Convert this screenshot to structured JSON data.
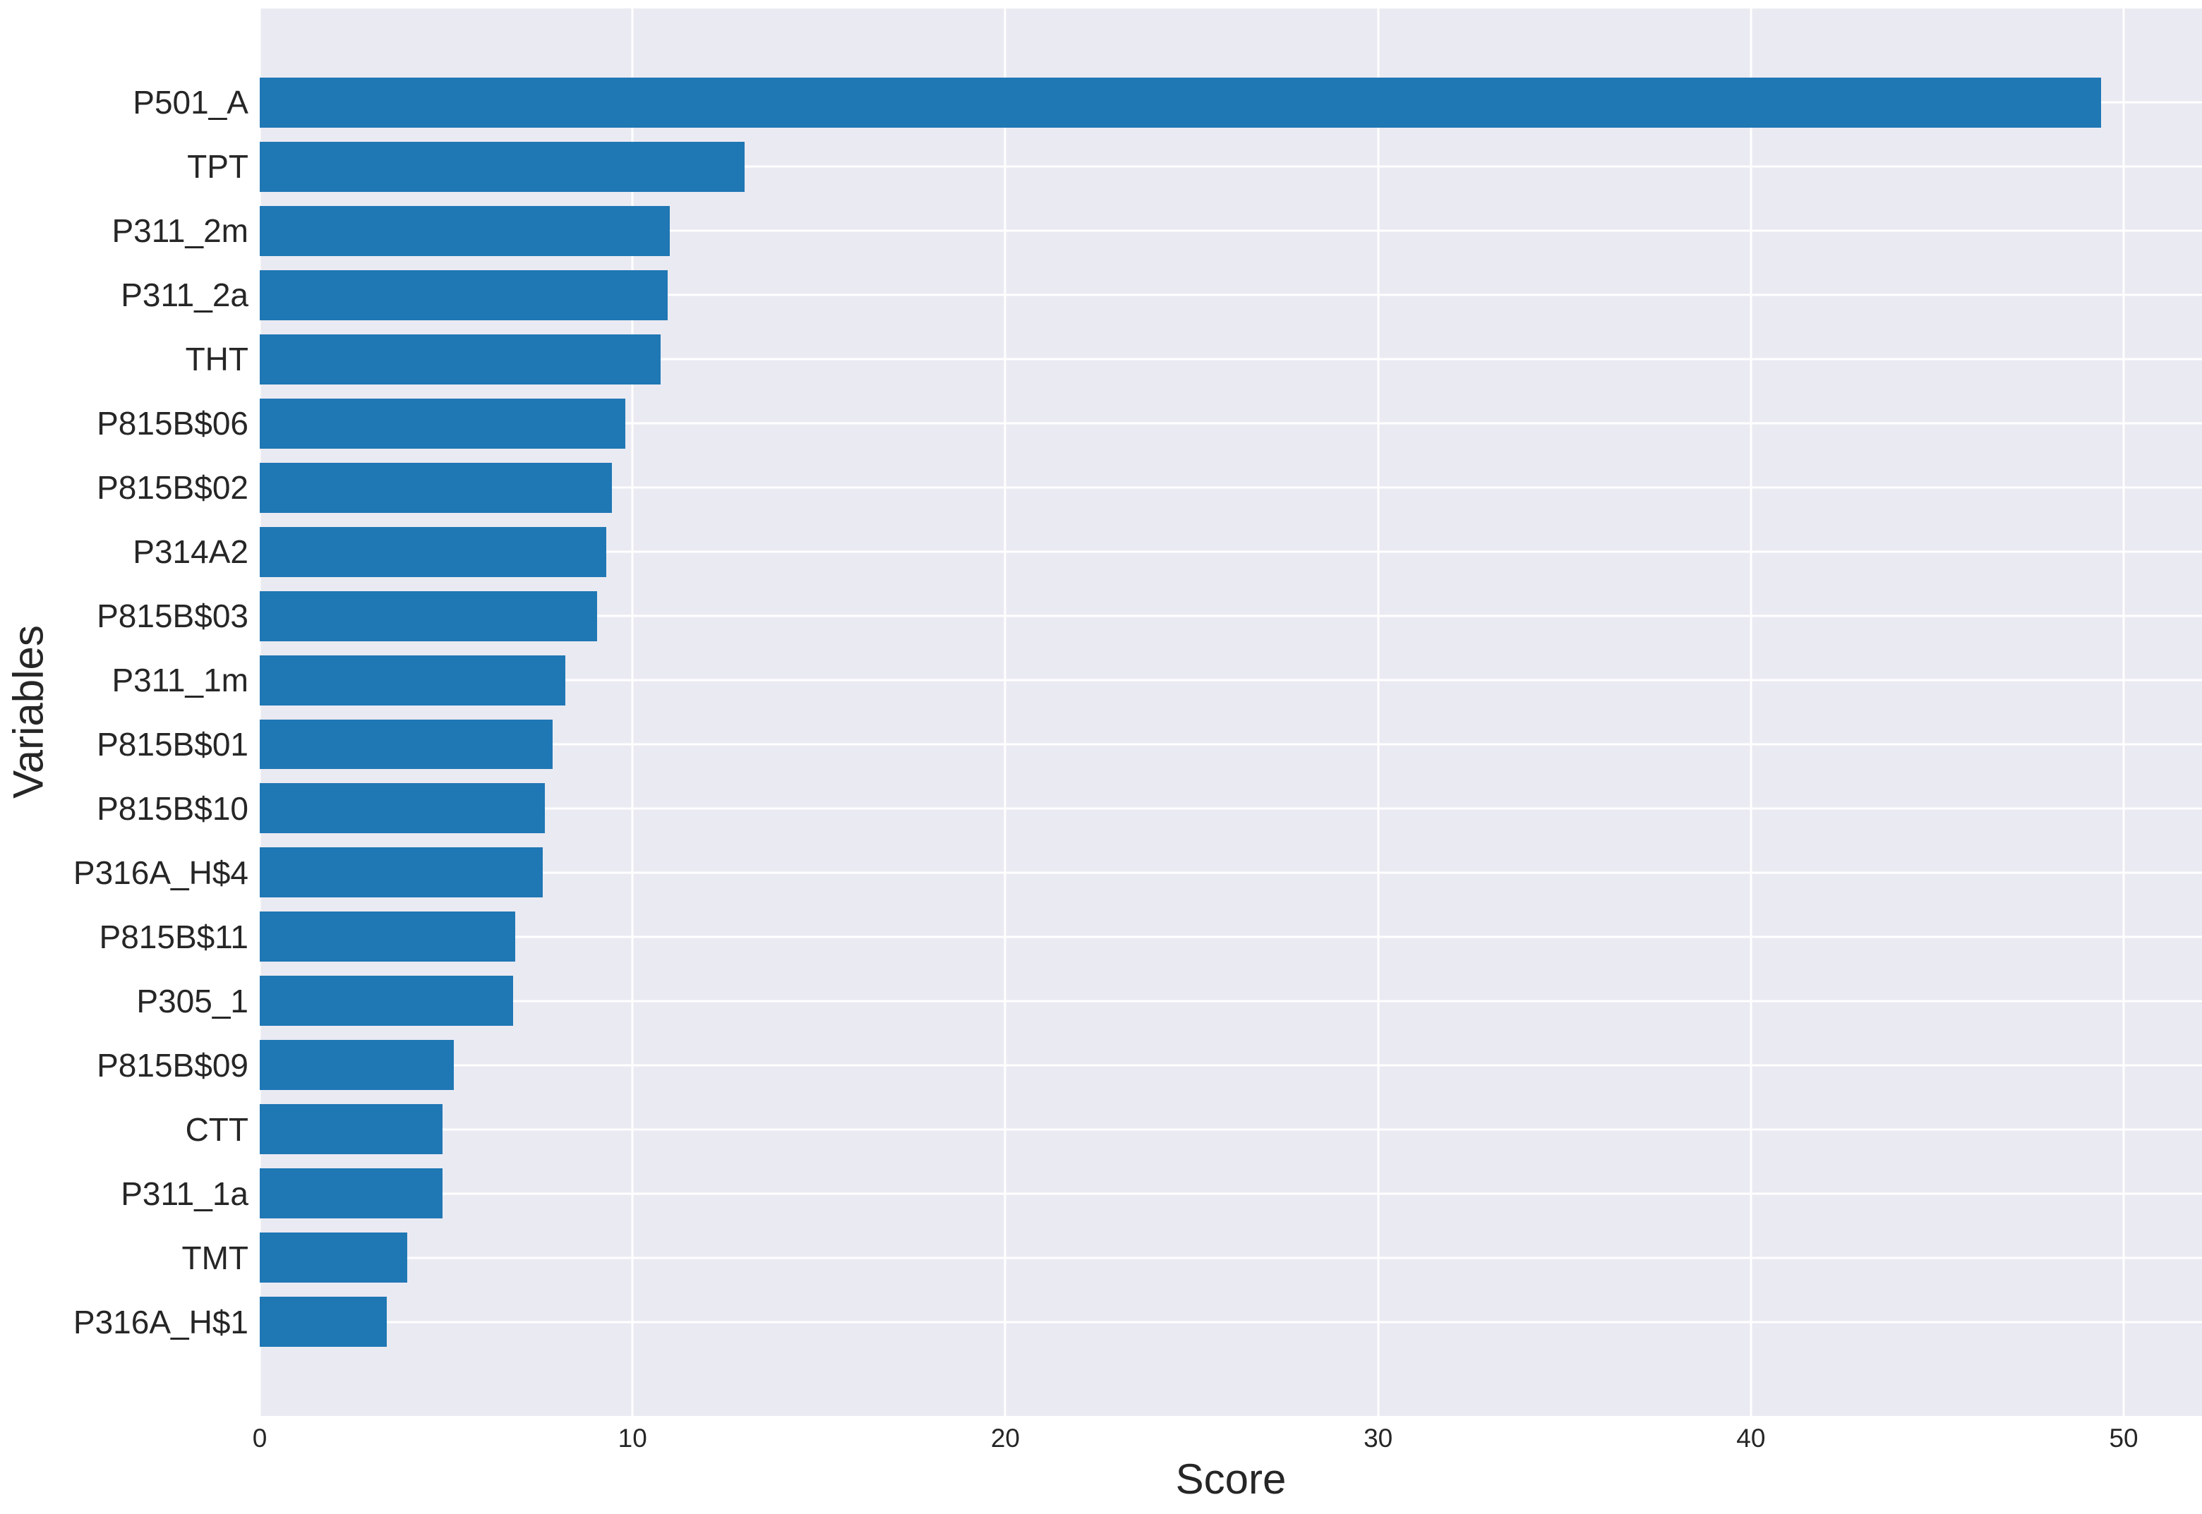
{
  "chart_data": {
    "type": "bar",
    "orientation": "horizontal",
    "title": "",
    "xlabel": "Score",
    "ylabel": "Variables",
    "categories": [
      "P501_A",
      "TPT",
      "P311_2m",
      "P311_2a",
      "THT",
      "P815B$06",
      "P815B$02",
      "P314A2",
      "P815B$03",
      "P311_1m",
      "P815B$01",
      "P815B$10",
      "P316A_H$4",
      "P815B$11",
      "P305_1",
      "P815B$09",
      "CTT",
      "P311_1a",
      "TMT",
      "P316A_H$1"
    ],
    "values": [
      49.4,
      13.0,
      11.0,
      10.95,
      10.75,
      9.8,
      9.45,
      9.3,
      9.05,
      8.2,
      7.85,
      7.65,
      7.6,
      6.85,
      6.8,
      5.2,
      4.9,
      4.9,
      3.95,
      3.4
    ],
    "xticks": [
      0,
      10,
      20,
      30,
      40,
      50
    ],
    "xlim": [
      0,
      52.1
    ],
    "grid": true,
    "legend_position": "none",
    "colors": {
      "bar": "#1f77b4",
      "plot_background": "#eaeaf2",
      "figure_background": "#ffffff",
      "gridline": "#ffffff",
      "text": "#262626"
    }
  }
}
